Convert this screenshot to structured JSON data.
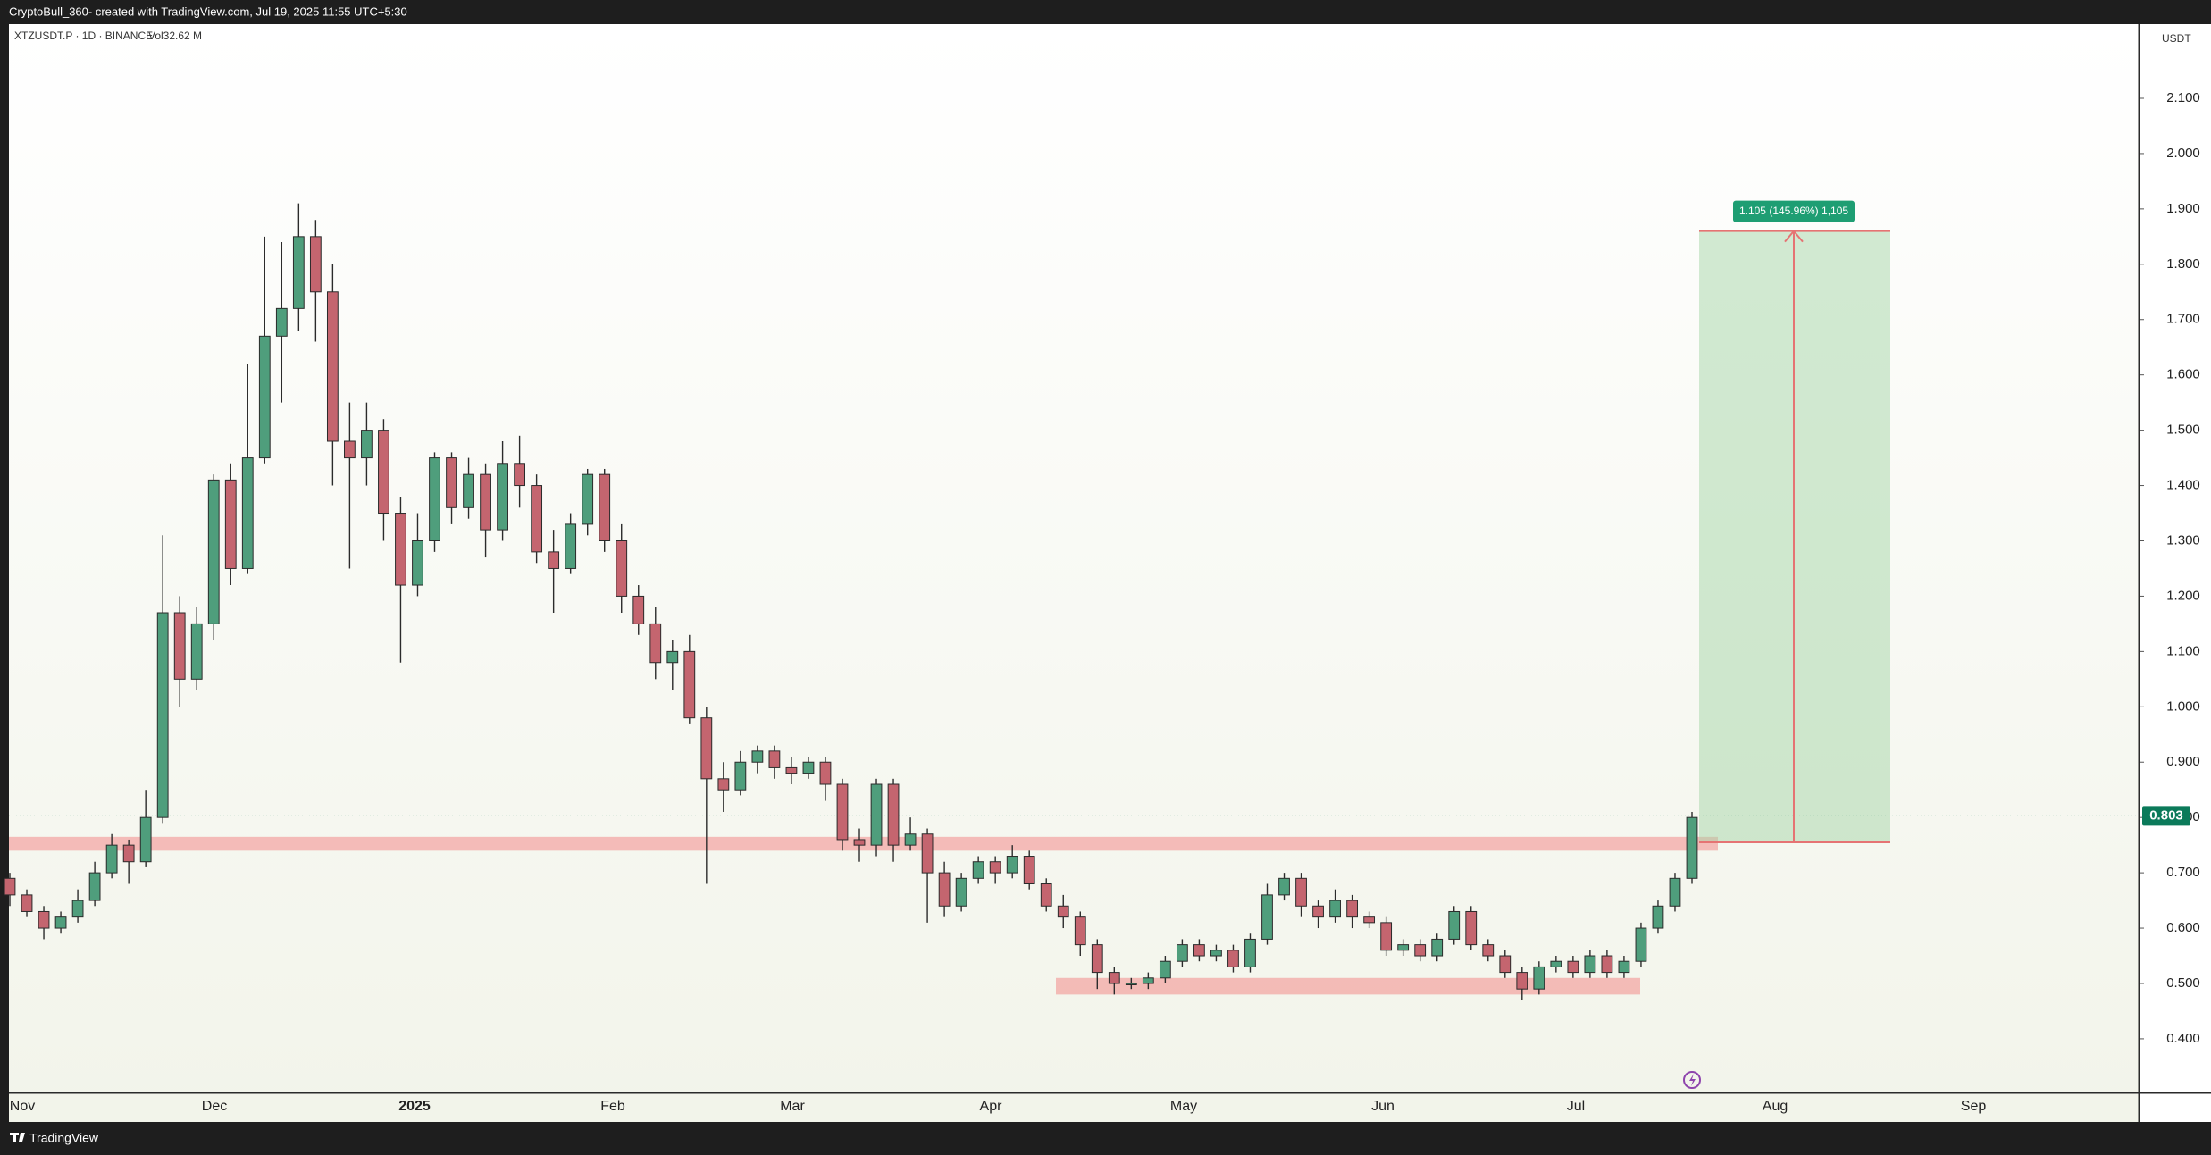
{
  "header": {
    "credit": "CryptoBull_360- created with TradingView.com, Jul 19, 2025 11:55 UTC+5:30",
    "footer": "TradingView"
  },
  "chart_data": {
    "type": "candlestick",
    "symbol": "XTZUSDT.P · 1D · BINANCE",
    "volume": "Vol32.62 M",
    "unit": "USDT",
    "up_color": "#4f9e7c",
    "down_color": "#c4656f",
    "xticks": [
      "Nov",
      "Dec",
      "2025",
      "Feb",
      "Mar",
      "Apr",
      "May",
      "Jun",
      "Jul",
      "Aug",
      "Sep"
    ],
    "ylim": [
      0.303,
      2.234
    ],
    "yticks": [
      {
        "value": 0.4,
        "label": "0.400"
      },
      {
        "value": 0.5,
        "label": "0.500"
      },
      {
        "value": 0.6,
        "label": "0.600"
      },
      {
        "value": 0.7,
        "label": "0.700"
      },
      {
        "value": 0.8,
        "label": "0.800"
      },
      {
        "value": 0.9,
        "label": "0.900"
      },
      {
        "value": 1.0,
        "label": "1.000"
      },
      {
        "value": 1.1,
        "label": "1.100"
      },
      {
        "value": 1.2,
        "label": "1.200"
      },
      {
        "value": 1.3,
        "label": "1.300"
      },
      {
        "value": 1.4,
        "label": "1.400"
      },
      {
        "value": 1.5,
        "label": "1.500"
      },
      {
        "value": 1.6,
        "label": "1.600"
      },
      {
        "value": 1.7,
        "label": "1.700"
      },
      {
        "value": 1.8,
        "label": "1.800"
      },
      {
        "value": 1.9,
        "label": "1.900"
      },
      {
        "value": 2.0,
        "label": "2.000"
      },
      {
        "value": 2.1,
        "label": "2.100"
      }
    ],
    "last_price": 0.803,
    "zones": [
      {
        "ylim": [
          0.74,
          0.765
        ]
      },
      {
        "ylim": [
          0.48,
          0.51
        ]
      }
    ],
    "target": {
      "ylim": [
        0.755,
        1.86
      ],
      "label": "1.105 (145.96%) 1,105"
    },
    "open": [
      0.69,
      0.66,
      0.63,
      0.6,
      0.62,
      0.65,
      0.7,
      0.75,
      0.72,
      0.8,
      1.17,
      1.05,
      1.15,
      1.41,
      1.25,
      1.45,
      1.67,
      1.72,
      1.85,
      1.75,
      1.48,
      1.45,
      1.5,
      1.35,
      1.22,
      1.3,
      1.45,
      1.36,
      1.42,
      1.32,
      1.44,
      1.4,
      1.28,
      1.25,
      1.33,
      1.42,
      1.3,
      1.2,
      1.15,
      1.08,
      1.1,
      0.98,
      0.87,
      0.85,
      0.9,
      0.92,
      0.89,
      0.88,
      0.9,
      0.86,
      0.76,
      0.75,
      0.86,
      0.75,
      0.77,
      0.7,
      0.64,
      0.69,
      0.72,
      0.7,
      0.73,
      0.68,
      0.64,
      0.62,
      0.57,
      0.52,
      0.5,
      0.5,
      0.51,
      0.54,
      0.57,
      0.55,
      0.56,
      0.53,
      0.58,
      0.66,
      0.69,
      0.64,
      0.62,
      0.65,
      0.62,
      0.61,
      0.56,
      0.57,
      0.55,
      0.58,
      0.63,
      0.57,
      0.55,
      0.52,
      0.49,
      0.53,
      0.54,
      0.52,
      0.55,
      0.52,
      0.54,
      0.6,
      0.64,
      0.69
    ],
    "high": [
      0.7,
      0.67,
      0.64,
      0.63,
      0.67,
      0.72,
      0.77,
      0.76,
      0.85,
      1.31,
      1.2,
      1.18,
      1.42,
      1.44,
      1.62,
      1.85,
      1.84,
      1.91,
      1.88,
      1.8,
      1.55,
      1.55,
      1.52,
      1.38,
      1.35,
      1.46,
      1.46,
      1.45,
      1.44,
      1.48,
      1.49,
      1.42,
      1.32,
      1.35,
      1.43,
      1.43,
      1.33,
      1.22,
      1.18,
      1.12,
      1.13,
      1.0,
      0.9,
      0.92,
      0.93,
      0.93,
      0.91,
      0.91,
      0.91,
      0.87,
      0.78,
      0.87,
      0.87,
      0.8,
      0.78,
      0.72,
      0.7,
      0.73,
      0.73,
      0.75,
      0.74,
      0.69,
      0.66,
      0.63,
      0.58,
      0.53,
      0.51,
      0.52,
      0.55,
      0.58,
      0.58,
      0.57,
      0.57,
      0.59,
      0.68,
      0.7,
      0.7,
      0.65,
      0.67,
      0.66,
      0.63,
      0.62,
      0.58,
      0.58,
      0.59,
      0.64,
      0.64,
      0.58,
      0.56,
      0.53,
      0.54,
      0.55,
      0.55,
      0.56,
      0.56,
      0.55,
      0.61,
      0.65,
      0.7,
      0.81
    ],
    "low": [
      0.64,
      0.62,
      0.58,
      0.59,
      0.61,
      0.64,
      0.69,
      0.68,
      0.71,
      0.79,
      1.0,
      1.03,
      1.12,
      1.22,
      1.24,
      1.44,
      1.55,
      1.68,
      1.66,
      1.4,
      1.25,
      1.4,
      1.3,
      1.08,
      1.2,
      1.28,
      1.33,
      1.34,
      1.27,
      1.3,
      1.36,
      1.26,
      1.17,
      1.24,
      1.31,
      1.28,
      1.17,
      1.13,
      1.05,
      1.03,
      0.97,
      0.68,
      0.81,
      0.84,
      0.88,
      0.87,
      0.86,
      0.87,
      0.83,
      0.74,
      0.72,
      0.73,
      0.72,
      0.74,
      0.61,
      0.62,
      0.63,
      0.68,
      0.68,
      0.69,
      0.67,
      0.63,
      0.6,
      0.55,
      0.49,
      0.48,
      0.49,
      0.49,
      0.5,
      0.53,
      0.54,
      0.54,
      0.52,
      0.52,
      0.57,
      0.65,
      0.62,
      0.6,
      0.61,
      0.6,
      0.6,
      0.55,
      0.55,
      0.54,
      0.54,
      0.57,
      0.56,
      0.54,
      0.51,
      0.47,
      0.48,
      0.52,
      0.51,
      0.51,
      0.51,
      0.51,
      0.53,
      0.59,
      0.63,
      0.68
    ],
    "close": [
      0.66,
      0.63,
      0.6,
      0.62,
      0.65,
      0.7,
      0.75,
      0.72,
      0.8,
      1.17,
      1.05,
      1.15,
      1.41,
      1.25,
      1.45,
      1.67,
      1.72,
      1.85,
      1.75,
      1.48,
      1.45,
      1.5,
      1.35,
      1.22,
      1.3,
      1.45,
      1.36,
      1.42,
      1.32,
      1.44,
      1.4,
      1.28,
      1.25,
      1.33,
      1.42,
      1.3,
      1.2,
      1.15,
      1.08,
      1.1,
      0.98,
      0.87,
      0.85,
      0.9,
      0.92,
      0.89,
      0.88,
      0.9,
      0.86,
      0.76,
      0.75,
      0.86,
      0.75,
      0.77,
      0.7,
      0.64,
      0.69,
      0.72,
      0.7,
      0.73,
      0.68,
      0.64,
      0.62,
      0.57,
      0.52,
      0.5,
      0.5,
      0.51,
      0.54,
      0.57,
      0.55,
      0.56,
      0.53,
      0.58,
      0.66,
      0.69,
      0.64,
      0.62,
      0.65,
      0.62,
      0.61,
      0.56,
      0.57,
      0.55,
      0.58,
      0.63,
      0.57,
      0.55,
      0.52,
      0.49,
      0.53,
      0.54,
      0.52,
      0.55,
      0.52,
      0.54,
      0.6,
      0.64,
      0.69,
      0.8
    ]
  }
}
